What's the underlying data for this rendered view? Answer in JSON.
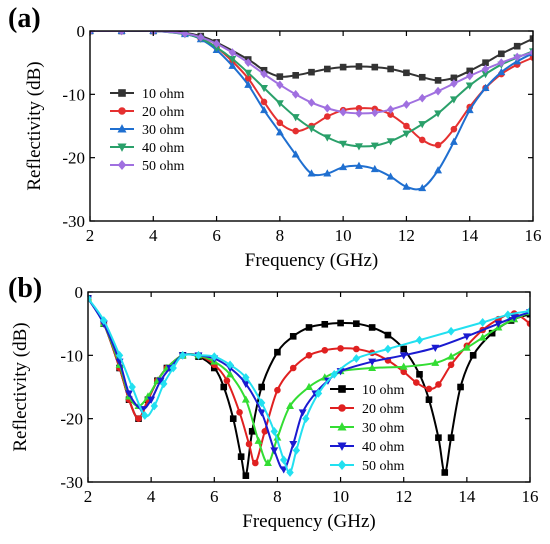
{
  "chart_data": [
    {
      "type": "line",
      "panel_label": "(a)",
      "xlabel": "Frequency (GHz)",
      "ylabel": "Reflectivity (dB)",
      "xlim": [
        2,
        16
      ],
      "ylim": [
        -30,
        0
      ],
      "xticks": [
        2,
        4,
        6,
        8,
        10,
        12,
        14,
        16
      ],
      "yticks": [
        0,
        -10,
        -20,
        -30
      ],
      "legend_position": "center-left",
      "series": [
        {
          "name": "10 ohm",
          "color": "#333333",
          "marker": "square",
          "x": [
            2,
            3,
            4,
            5,
            5.5,
            6,
            7,
            7.5,
            8,
            8.5,
            9,
            9.5,
            10,
            10.5,
            11,
            11.5,
            12,
            12.5,
            13,
            13.5,
            14,
            14.5,
            15,
            15.5,
            16
          ],
          "y": [
            0,
            0,
            0,
            -0.3,
            -0.8,
            -1.8,
            -4.5,
            -6.2,
            -7.2,
            -7.0,
            -6.5,
            -6.0,
            -5.7,
            -5.6,
            -5.7,
            -6.0,
            -6.6,
            -7.3,
            -7.8,
            -7.4,
            -6.3,
            -5.0,
            -3.6,
            -2.4,
            -1.2
          ]
        },
        {
          "name": "20 ohm",
          "color": "#e53030",
          "marker": "circle",
          "x": [
            2,
            3,
            4,
            5,
            5.5,
            6,
            6.5,
            7,
            7.5,
            8,
            8.5,
            9,
            9.5,
            10,
            10.5,
            11,
            11.5,
            12,
            12.5,
            13,
            13.5,
            14,
            14.5,
            15,
            15.5,
            16
          ],
          "y": [
            0,
            0,
            0,
            -0.4,
            -1.2,
            -2.6,
            -4.8,
            -7.5,
            -11.2,
            -14.5,
            -15.8,
            -15.0,
            -13.5,
            -12.5,
            -12.2,
            -12.3,
            -13.2,
            -15.0,
            -17.2,
            -18.0,
            -15.5,
            -12.0,
            -9.0,
            -6.8,
            -5.3,
            -4.2
          ]
        },
        {
          "name": "30 ohm",
          "color": "#1f6fd0",
          "marker": "triangle-up",
          "x": [
            2,
            3,
            4,
            5,
            5.5,
            6,
            6.5,
            7,
            7.5,
            8,
            8.5,
            9,
            9.5,
            10,
            10.5,
            11,
            11.5,
            12,
            12.5,
            13,
            13.5,
            14,
            14.5,
            15,
            15.5,
            16
          ],
          "y": [
            0,
            0,
            0,
            -0.5,
            -1.3,
            -3.0,
            -5.5,
            -8.5,
            -12.5,
            -16.0,
            -19.5,
            -22.5,
            -22.5,
            -21.5,
            -21.3,
            -21.8,
            -23.0,
            -24.6,
            -24.8,
            -22.0,
            -17.5,
            -12.5,
            -9.0,
            -6.5,
            -4.8,
            -3.5
          ]
        },
        {
          "name": "40 ohm",
          "color": "#2aa06a",
          "marker": "triangle-down",
          "x": [
            2,
            3,
            4,
            5,
            5.5,
            6,
            6.5,
            7,
            7.5,
            8,
            8.5,
            9,
            9.5,
            10,
            10.5,
            11,
            11.5,
            12,
            12.5,
            13,
            13.5,
            14,
            14.5,
            15,
            15.5,
            16
          ],
          "y": [
            0,
            0,
            0,
            -0.5,
            -1.2,
            -2.6,
            -4.4,
            -6.6,
            -9.0,
            -11.4,
            -13.6,
            -15.4,
            -16.8,
            -17.8,
            -18.2,
            -18.1,
            -17.4,
            -16.2,
            -14.7,
            -13.0,
            -10.8,
            -8.6,
            -6.8,
            -5.3,
            -4.2,
            -3.2
          ]
        },
        {
          "name": "50 ohm",
          "color": "#a070e0",
          "marker": "diamond",
          "x": [
            2,
            3,
            4,
            5,
            5.5,
            6,
            6.5,
            7,
            7.5,
            8,
            8.5,
            9,
            9.5,
            10,
            10.5,
            11,
            11.5,
            12,
            12.5,
            13,
            13.5,
            14,
            14.5,
            15,
            15.5,
            16
          ],
          "y": [
            0,
            0,
            0,
            -0.4,
            -1.0,
            -2.0,
            -3.4,
            -5.0,
            -6.8,
            -8.5,
            -10.0,
            -11.3,
            -12.2,
            -12.8,
            -13.0,
            -12.9,
            -12.4,
            -11.6,
            -10.6,
            -9.5,
            -8.3,
            -7.1,
            -6.0,
            -5.0,
            -4.1,
            -3.4
          ]
        }
      ]
    },
    {
      "type": "line",
      "panel_label": "(b)",
      "xlabel": "Frequency (GHz)",
      "ylabel": "Reflectivity (dB)",
      "xlim": [
        2,
        16
      ],
      "ylim": [
        -30,
        0
      ],
      "xticks": [
        2,
        4,
        6,
        8,
        10,
        12,
        14,
        16
      ],
      "yticks": [
        0,
        -10,
        -20,
        -30
      ],
      "legend_position": "lower-right",
      "series": [
        {
          "name": "10 ohm",
          "color": "#000000",
          "marker": "square",
          "x": [
            2,
            2.5,
            3,
            3.3,
            3.6,
            3.9,
            4.2,
            4.5,
            5,
            5.5,
            6,
            6.3,
            6.6,
            6.85,
            7,
            7.2,
            7.5,
            8,
            8.5,
            9,
            9.5,
            10,
            10.5,
            11,
            11.5,
            12,
            12.5,
            12.8,
            13.1,
            13.3,
            13.5,
            13.8,
            14.2,
            14.8,
            15.4,
            16
          ],
          "y": [
            -1,
            -5,
            -12,
            -17,
            -20,
            -17,
            -14,
            -12,
            -10,
            -10.2,
            -12,
            -15,
            -20,
            -26,
            -29,
            -22,
            -15,
            -9.5,
            -7,
            -5.6,
            -5.1,
            -4.9,
            -5.0,
            -5.6,
            -6.8,
            -9,
            -13,
            -17,
            -23,
            -28.5,
            -23,
            -15,
            -10,
            -6.5,
            -4.5,
            -3.5
          ]
        },
        {
          "name": "20 ohm",
          "color": "#e02020",
          "marker": "circle",
          "x": [
            2,
            2.5,
            3,
            3.3,
            3.6,
            3.9,
            4.2,
            4.5,
            5,
            5.5,
            6,
            6.4,
            6.8,
            7.1,
            7.3,
            7.6,
            8,
            8.5,
            9,
            9.5,
            10,
            10.5,
            11,
            11.5,
            12,
            12.4,
            12.8,
            13.1,
            13.5,
            14,
            14.5,
            15,
            15.5,
            16
          ],
          "y": [
            -1,
            -5,
            -12,
            -17,
            -20,
            -17,
            -14,
            -12,
            -10,
            -10,
            -11.5,
            -14,
            -19,
            -24,
            -27,
            -22,
            -15.5,
            -12,
            -10,
            -9.2,
            -8.9,
            -9.0,
            -9.6,
            -10.8,
            -12.6,
            -14.3,
            -15.3,
            -14.6,
            -11.5,
            -8.5,
            -6.0,
            -4.3,
            -3.4,
            -5.0
          ]
        },
        {
          "name": "30 ohm",
          "color": "#33dd33",
          "marker": "triangle-up",
          "x": [
            2,
            2.5,
            3,
            3.3,
            3.6,
            3.9,
            4.2,
            4.5,
            5,
            5.5,
            6,
            6.5,
            7,
            7.4,
            7.7,
            8,
            8.4,
            9,
            9.5,
            10,
            11,
            12,
            13,
            13.5,
            14,
            14.5,
            15,
            15.5,
            16
          ],
          "y": [
            -1,
            -5,
            -11.5,
            -16.5,
            -18,
            -16.5,
            -14,
            -12,
            -10,
            -10,
            -11,
            -13,
            -17,
            -23.5,
            -27,
            -23,
            -18,
            -15,
            -13.5,
            -12.5,
            -12,
            -11.8,
            -11.2,
            -10.2,
            -8.8,
            -7.2,
            -5.6,
            -4.3,
            -3.2
          ]
        },
        {
          "name": "40 ohm",
          "color": "#1a1ad0",
          "marker": "triangle-down",
          "x": [
            2,
            2.5,
            3,
            3.3,
            3.7,
            4,
            4.3,
            4.6,
            5,
            5.5,
            6,
            6.5,
            7,
            7.5,
            7.9,
            8.2,
            8.5,
            8.8,
            9.2,
            9.6,
            10,
            11,
            12,
            13,
            14,
            15,
            15.5,
            16
          ],
          "y": [
            -1,
            -5,
            -11,
            -16,
            -18.5,
            -17,
            -14,
            -12,
            -10,
            -10,
            -10.5,
            -12,
            -14.5,
            -19,
            -25,
            -28,
            -24,
            -19,
            -16,
            -14,
            -12.5,
            -11,
            -10,
            -8.8,
            -7,
            -5,
            -4.0,
            -3.2
          ]
        },
        {
          "name": "50 ohm",
          "color": "#22e0f0",
          "marker": "diamond",
          "x": [
            2,
            2.5,
            3,
            3.4,
            3.8,
            4.1,
            4.4,
            4.7,
            5,
            5.5,
            6,
            6.5,
            7,
            7.5,
            7.9,
            8.2,
            8.4,
            8.6,
            8.9,
            9.3,
            9.8,
            10.5,
            11.5,
            12.5,
            13.5,
            14.5,
            15.3,
            16
          ],
          "y": [
            -1,
            -4.5,
            -10,
            -15,
            -19.5,
            -18,
            -14.5,
            -12,
            -10,
            -10,
            -10.2,
            -11.5,
            -13.5,
            -17.5,
            -22,
            -26.5,
            -28.5,
            -25,
            -20,
            -16,
            -13,
            -10.5,
            -9.0,
            -7.6,
            -6.2,
            -4.8,
            -3.6,
            -3.0
          ]
        }
      ]
    }
  ]
}
